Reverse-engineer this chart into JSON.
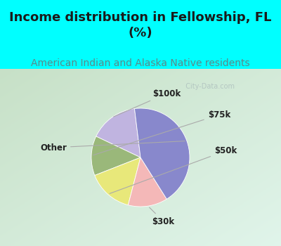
{
  "title": "Income distribution in Fellowship, FL\n(%)",
  "subtitle": "American Indian and Alaska Native residents",
  "title_color": "#1a1a1a",
  "subtitle_color": "#5a8a8a",
  "title_fontsize": 13,
  "subtitle_fontsize": 10,
  "slices": [
    {
      "label": "$100k",
      "value": 16,
      "color": "#c0b4e0"
    },
    {
      "label": "$75k",
      "value": 13,
      "color": "#9ab87a"
    },
    {
      "label": "$50k",
      "value": 15,
      "color": "#e8e87a"
    },
    {
      "label": "$30k",
      "value": 13,
      "color": "#f4b8b8"
    },
    {
      "label": "Other",
      "value": 43,
      "color": "#8888cc"
    }
  ],
  "watermark": "City-Data.com",
  "startangle": 97
}
